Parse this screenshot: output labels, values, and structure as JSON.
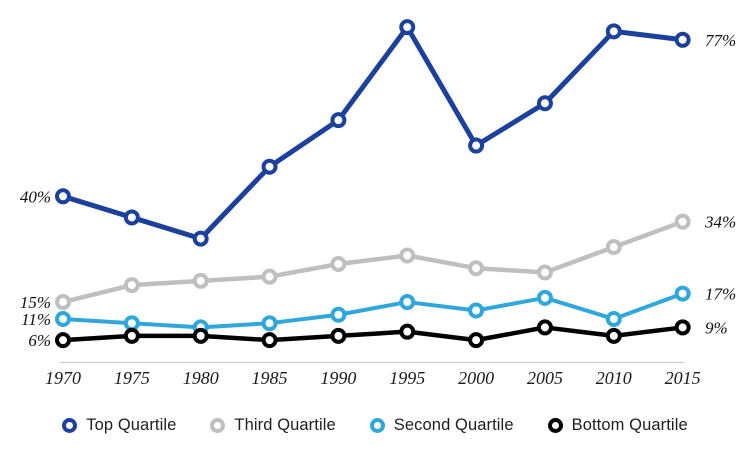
{
  "chart_data": {
    "type": "line",
    "title": "",
    "xlabel": "",
    "ylabel": "",
    "x": [
      1970,
      1975,
      1980,
      1985,
      1990,
      1995,
      2000,
      2005,
      2010,
      2015
    ],
    "ylim": [
      0,
      85
    ],
    "grid": false,
    "legend_position": "bottom",
    "marker": "open-circle",
    "axis_line_color": "#c8c8c8",
    "series": [
      {
        "name": "Top Quartile",
        "color": "#1c419c",
        "values": [
          40,
          35,
          30,
          47,
          58,
          80,
          52,
          62,
          79,
          77
        ],
        "start_label": "40%",
        "end_label": "77%"
      },
      {
        "name": "Third Quartile",
        "color": "#bdbfc1",
        "values": [
          15,
          19,
          20,
          21,
          24,
          26,
          23,
          22,
          28,
          34
        ],
        "start_label": "15%",
        "end_label": "34%"
      },
      {
        "name": "Second Quartile",
        "color": "#30a7dc",
        "values": [
          11,
          10,
          9,
          10,
          12,
          15,
          13,
          16,
          11,
          17
        ],
        "start_label": "11%",
        "end_label": "17%"
      },
      {
        "name": "Bottom Quartile",
        "color": "#000000",
        "values": [
          6,
          7,
          7,
          6,
          7,
          8,
          6,
          9,
          7,
          9
        ],
        "start_label": "6%",
        "end_label": "9%"
      }
    ]
  }
}
